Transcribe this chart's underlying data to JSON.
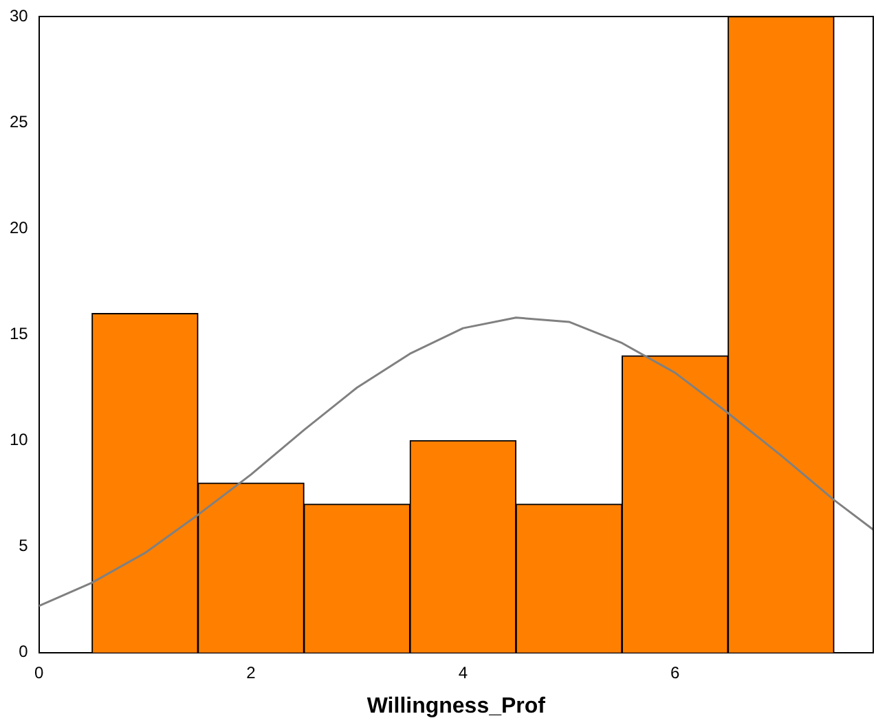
{
  "chart_data": {
    "type": "histogram",
    "xlabel": "Willingness_Prof",
    "bins": [
      0.5,
      1.5,
      2.5,
      3.5,
      4.5,
      5.5,
      6.5,
      7.5
    ],
    "values": [
      16,
      8,
      7,
      10,
      7,
      14,
      30
    ],
    "color": "#ff8000",
    "series": [
      {
        "type": "line",
        "color": "#808080",
        "x": [
          0,
          0.5,
          1,
          1.5,
          2,
          2.5,
          3,
          3.5,
          4,
          4.5,
          5,
          5.5,
          6,
          6.5,
          7,
          7.5,
          7.87
        ],
        "values": [
          2.2,
          3.3,
          4.7,
          6.5,
          8.4,
          10.5,
          12.5,
          14.1,
          15.3,
          15.8,
          15.6,
          14.6,
          13.2,
          11.3,
          9.3,
          7.2,
          5.8
        ]
      }
    ],
    "xlim": [
      0,
      7.87
    ],
    "ylim": [
      0,
      30
    ],
    "xticks": [
      0,
      2,
      4,
      6
    ],
    "yticks": [
      0,
      5,
      10,
      15,
      20,
      25,
      30
    ],
    "grid": false,
    "legend": false,
    "marker": "none"
  }
}
